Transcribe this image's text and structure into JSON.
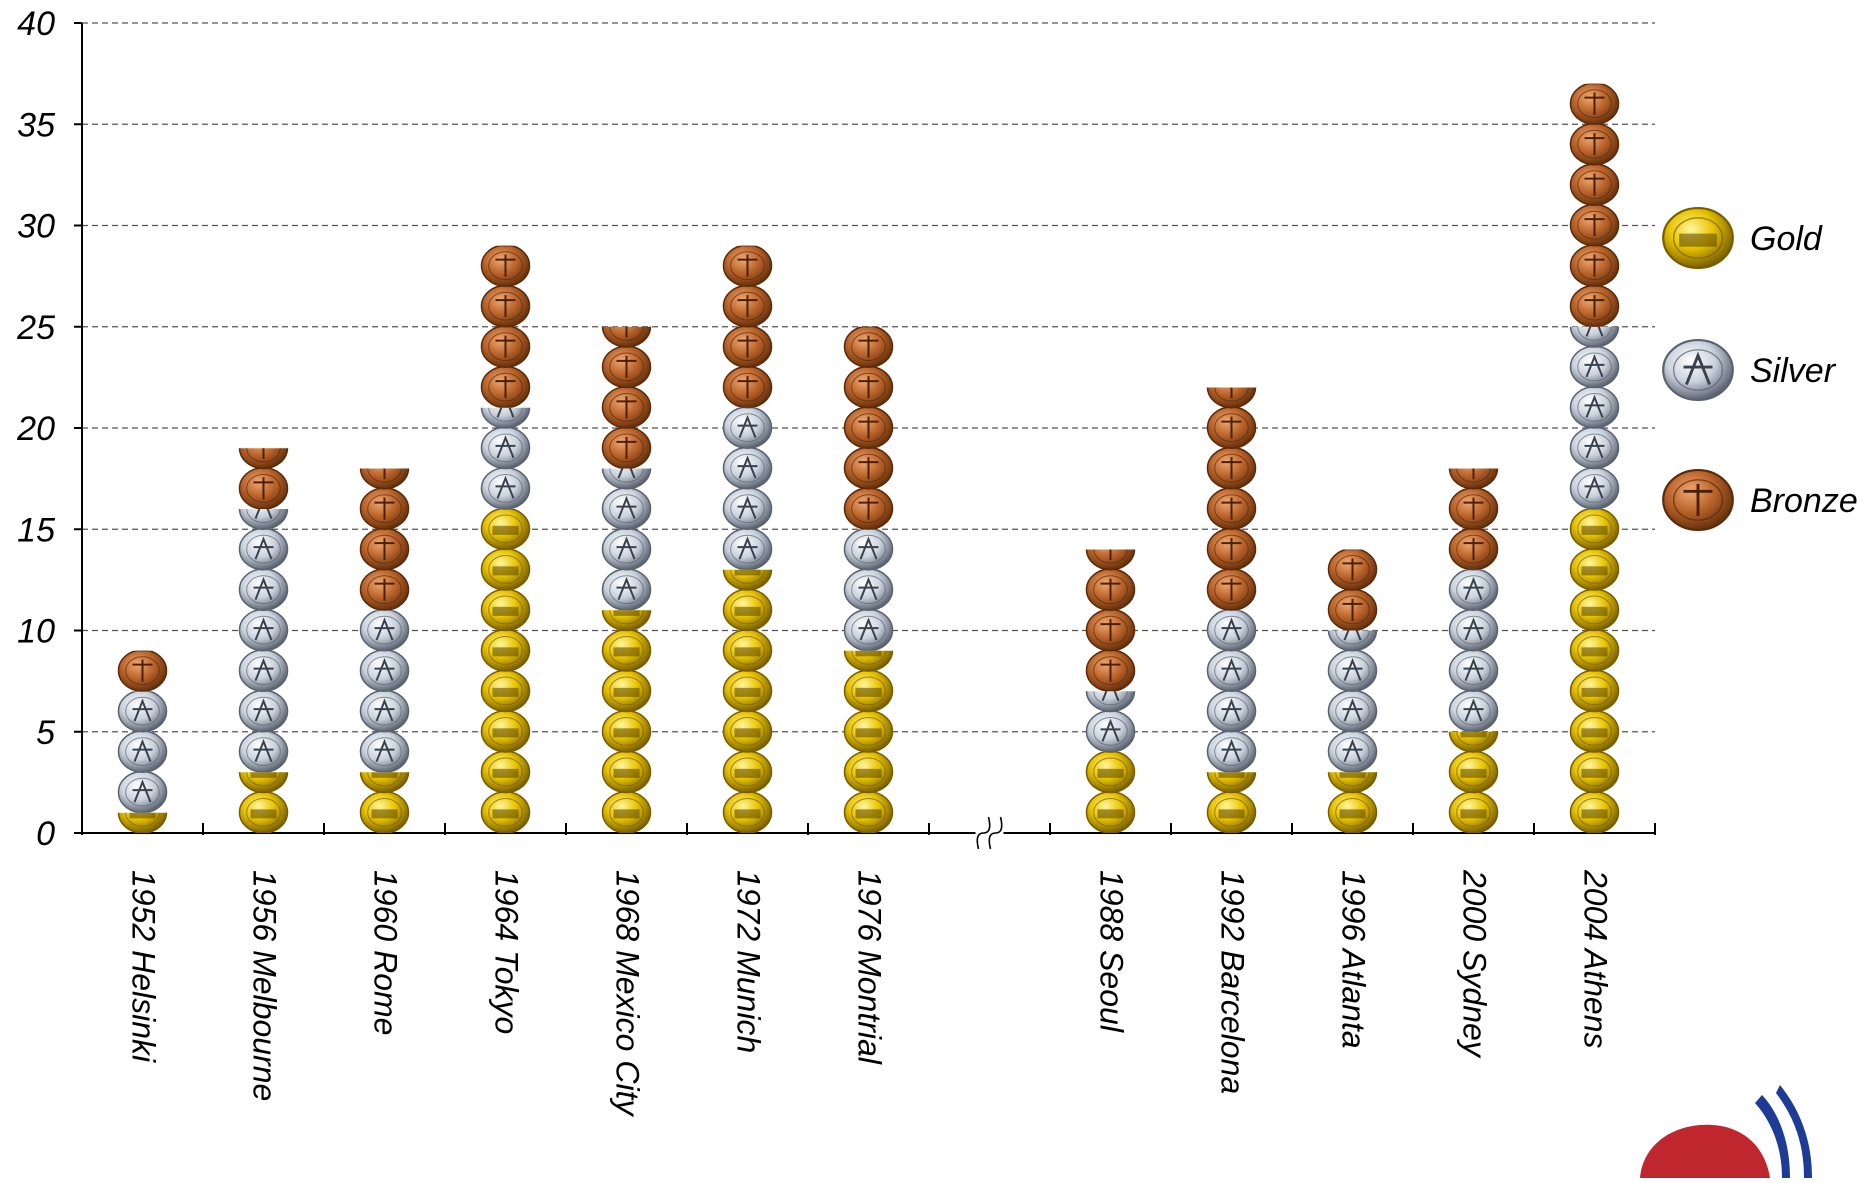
{
  "chart_data": {
    "type": "bar",
    "stacked": true,
    "title": "",
    "xlabel": "",
    "ylabel": "",
    "categories": [
      "1952  Helsinki",
      "1956 Melbourne",
      "1960 Rome",
      "1964 Tokyo",
      "1968 Mexico City",
      "1972 Munich",
      "1976 Montrial",
      "1988 Seoul",
      "1992 Barcelona",
      "1996 Atlanta",
      "2000 Sydney",
      "2004 Athens"
    ],
    "axis_break_after": "1976 Montrial",
    "series": [
      {
        "name": "Gold",
        "values": [
          1,
          3,
          3,
          16,
          11,
          13,
          9,
          4,
          3,
          3,
          5,
          16
        ]
      },
      {
        "name": "Silver",
        "values": [
          6,
          13,
          8,
          5,
          7,
          8,
          6,
          3,
          8,
          7,
          8,
          9
        ]
      },
      {
        "name": "Bronze",
        "values": [
          2,
          3,
          7,
          8,
          7,
          8,
          10,
          7,
          11,
          4,
          5,
          12
        ]
      }
    ],
    "ylim": [
      0,
      40
    ],
    "yticks": [
      0,
      5,
      10,
      15,
      20,
      25,
      30,
      35,
      40
    ],
    "grid": true,
    "legend_position": "right",
    "colors": {
      "Gold": "#e8c400",
      "Silver": "#c9d1dc",
      "Bronze": "#b8622a"
    }
  }
}
